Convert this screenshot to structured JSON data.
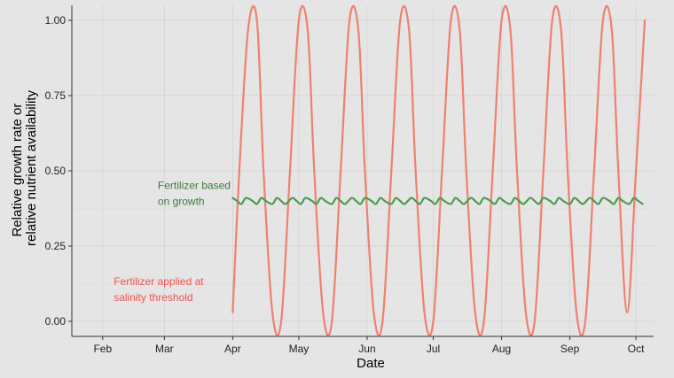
{
  "chart_data": {
    "type": "line",
    "xlabel": "Date",
    "ylabel_lines": [
      "Relative growth rate or",
      "relative nutrient availability"
    ],
    "x_ticks": [
      "Feb",
      "Mar",
      "Apr",
      "May",
      "Jun",
      "Jul",
      "Aug",
      "Sep",
      "Oct"
    ],
    "x_tick_dates": [
      "02-01",
      "03-01",
      "04-01",
      "05-01",
      "06-01",
      "07-01",
      "08-01",
      "09-01",
      "10-01"
    ],
    "xlim": [
      "01-18",
      "10-09"
    ],
    "y_ticks": [
      "0.00",
      "0.25",
      "0.50",
      "0.75",
      "1.00"
    ],
    "y_tick_values": [
      0,
      0.25,
      0.5,
      0.75,
      1
    ],
    "ylim": [
      -0.05,
      1.05
    ],
    "grid": true,
    "series": [
      {
        "name": "Fertilizer applied at salinity threshold",
        "color": "#f08070",
        "x": [
          "04-01",
          "04-04",
          "04-08",
          "04-12",
          "04-15",
          "04-19",
          "04-23",
          "04-27",
          "05-01",
          "05-05",
          "05-08",
          "05-12",
          "05-16",
          "05-20",
          "05-24",
          "05-28",
          "05-31",
          "06-04",
          "06-08",
          "06-12",
          "06-16",
          "06-20",
          "06-23",
          "06-27",
          "07-01",
          "07-05",
          "07-09",
          "07-13",
          "07-16",
          "07-20",
          "07-24",
          "07-28",
          "08-01",
          "08-05",
          "08-08",
          "08-12",
          "08-16",
          "08-20",
          "08-24",
          "08-28",
          "08-31",
          "09-04",
          "09-08",
          "09-12",
          "09-16",
          "09-20",
          "09-23",
          "09-27",
          "10-01",
          "10-05"
        ],
        "values": [
          0.03,
          0.5,
          0.97,
          1.0,
          0.5,
          0.03,
          0.0,
          0.5,
          1.0,
          0.97,
          0.5,
          0.03,
          0.0,
          0.5,
          1.0,
          0.97,
          0.5,
          0.03,
          0.0,
          0.5,
          1.0,
          0.97,
          0.5,
          0.03,
          0.0,
          0.5,
          1.0,
          0.97,
          0.5,
          0.03,
          0.0,
          0.5,
          1.0,
          0.97,
          0.5,
          0.03,
          0.0,
          0.5,
          1.0,
          0.97,
          0.5,
          0.03,
          0.0,
          0.5,
          1.0,
          0.97,
          0.5,
          0.03,
          0.5,
          1.0
        ]
      },
      {
        "name": "Fertilizer based on growth",
        "color": "#4d9a4d",
        "x": [
          "04-01",
          "04-03",
          "04-05",
          "04-07",
          "04-10",
          "04-12",
          "04-14",
          "04-16",
          "04-19",
          "04-21",
          "04-23",
          "04-25",
          "04-28",
          "04-30",
          "05-02",
          "05-04",
          "05-07",
          "05-09",
          "05-11",
          "05-13",
          "05-16",
          "05-18",
          "05-20",
          "05-22",
          "05-25",
          "05-27",
          "05-29",
          "05-31",
          "06-03",
          "06-05",
          "06-07",
          "06-09",
          "06-12",
          "06-14",
          "06-16",
          "06-18",
          "06-21",
          "06-23",
          "06-25",
          "06-27",
          "06-30",
          "07-02",
          "07-04",
          "07-06",
          "07-09",
          "07-11",
          "07-13",
          "07-15",
          "07-18",
          "07-20",
          "07-22",
          "07-24",
          "07-27",
          "07-29",
          "07-31",
          "08-02",
          "08-05",
          "08-07",
          "08-09",
          "08-11",
          "08-14",
          "08-16",
          "08-18",
          "08-20",
          "08-23",
          "08-25",
          "08-27",
          "08-29",
          "09-01",
          "09-03",
          "09-05",
          "09-07",
          "09-10",
          "09-12",
          "09-14",
          "09-16",
          "09-19",
          "09-21",
          "09-23",
          "09-25",
          "09-28",
          "09-30",
          "10-02",
          "10-04"
        ],
        "values": [
          0.41,
          0.4,
          0.39,
          0.41,
          0.4,
          0.39,
          0.41,
          0.4,
          0.39,
          0.41,
          0.4,
          0.39,
          0.41,
          0.4,
          0.39,
          0.41,
          0.4,
          0.39,
          0.41,
          0.4,
          0.39,
          0.41,
          0.4,
          0.39,
          0.41,
          0.4,
          0.39,
          0.41,
          0.4,
          0.39,
          0.41,
          0.4,
          0.39,
          0.41,
          0.4,
          0.39,
          0.41,
          0.4,
          0.39,
          0.41,
          0.4,
          0.39,
          0.41,
          0.4,
          0.39,
          0.41,
          0.4,
          0.39,
          0.41,
          0.4,
          0.39,
          0.41,
          0.4,
          0.39,
          0.41,
          0.4,
          0.39,
          0.41,
          0.4,
          0.39,
          0.41,
          0.4,
          0.39,
          0.41,
          0.4,
          0.39,
          0.41,
          0.4,
          0.39,
          0.41,
          0.4,
          0.39,
          0.41,
          0.4,
          0.39,
          0.41,
          0.4,
          0.39,
          0.41,
          0.4,
          0.39,
          0.41,
          0.4,
          0.39
        ]
      }
    ],
    "annotations": [
      {
        "lines": [
          "Fertilizer based",
          "on growth"
        ],
        "color": "#3a7d3a",
        "x": "02-26",
        "y": 0.44
      },
      {
        "lines": [
          "Fertilizer applied at",
          "salinity threshold"
        ],
        "color": "#ef5350",
        "x": "02-06",
        "y": 0.12
      }
    ]
  }
}
